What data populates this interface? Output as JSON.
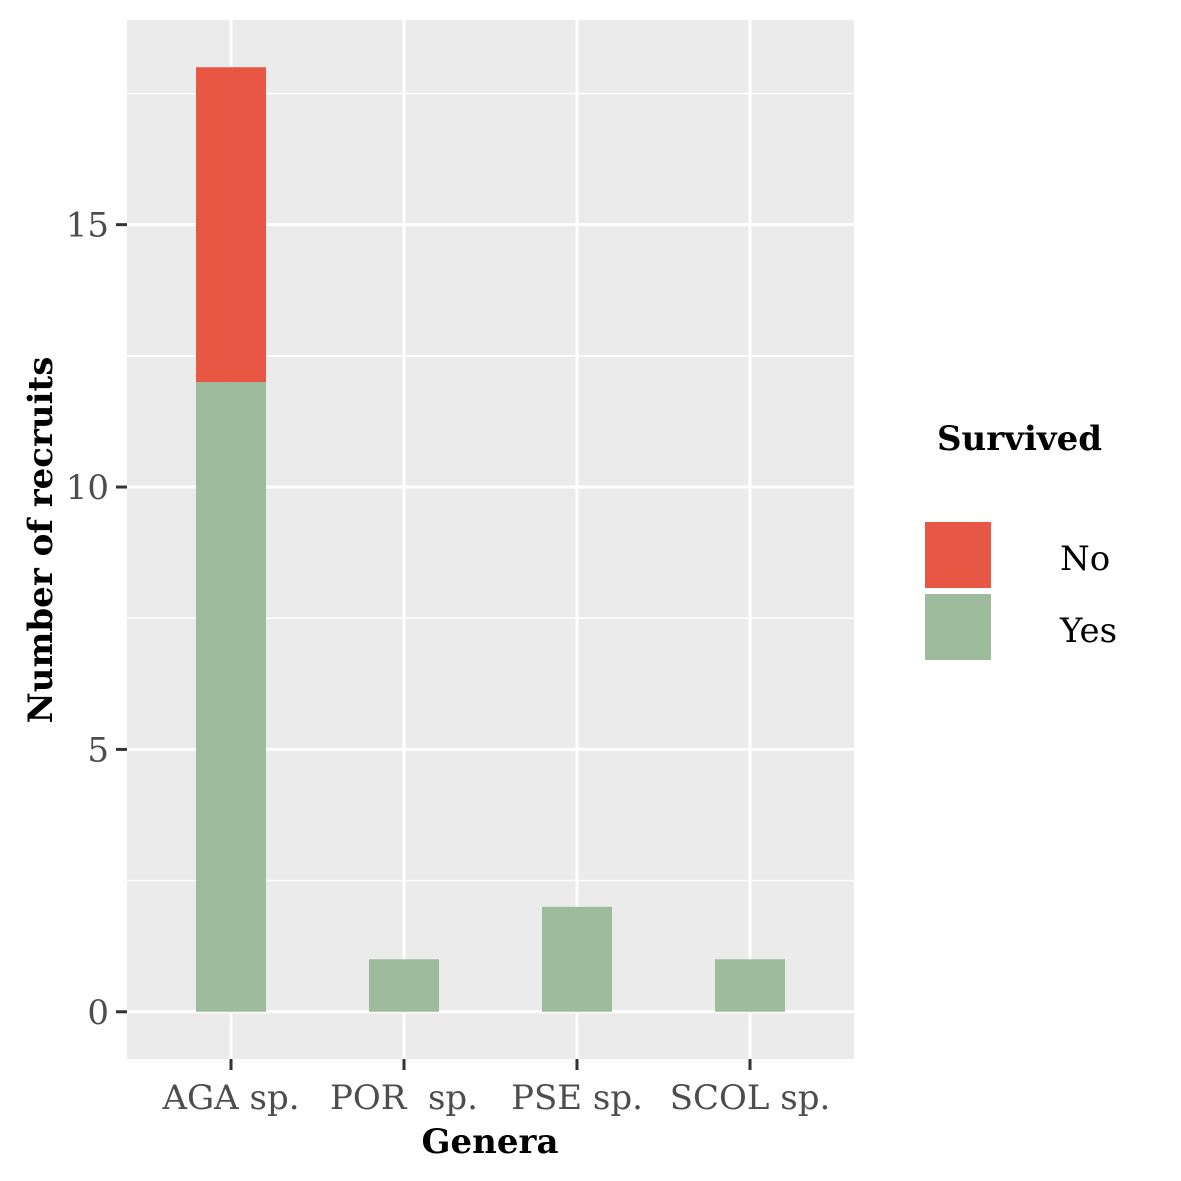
{
  "chart_data": {
    "type": "bar",
    "stacked": true,
    "categories": [
      "AGA sp.",
      "POR  sp.",
      "PSE sp.",
      "SCOL sp."
    ],
    "series": [
      {
        "name": "Yes",
        "values": [
          12,
          1,
          2,
          1
        ],
        "color": "#9fbb9d"
      },
      {
        "name": "No",
        "values": [
          6,
          0,
          0,
          0
        ],
        "color": "#e85743"
      }
    ],
    "xlabel": "Genera",
    "ylabel": "Number of recruits",
    "ylim": [
      -0.9,
      18.9
    ],
    "yticks": [
      0,
      5,
      10,
      15
    ],
    "yticks_minor": [
      2.5,
      7.5,
      12.5,
      17.5
    ],
    "legend": {
      "title": "Survived",
      "position": "right",
      "entries": [
        "No",
        "Yes"
      ]
    },
    "grid": true,
    "panel_background": "#ebebeb",
    "grid_color": "#ffffff"
  }
}
